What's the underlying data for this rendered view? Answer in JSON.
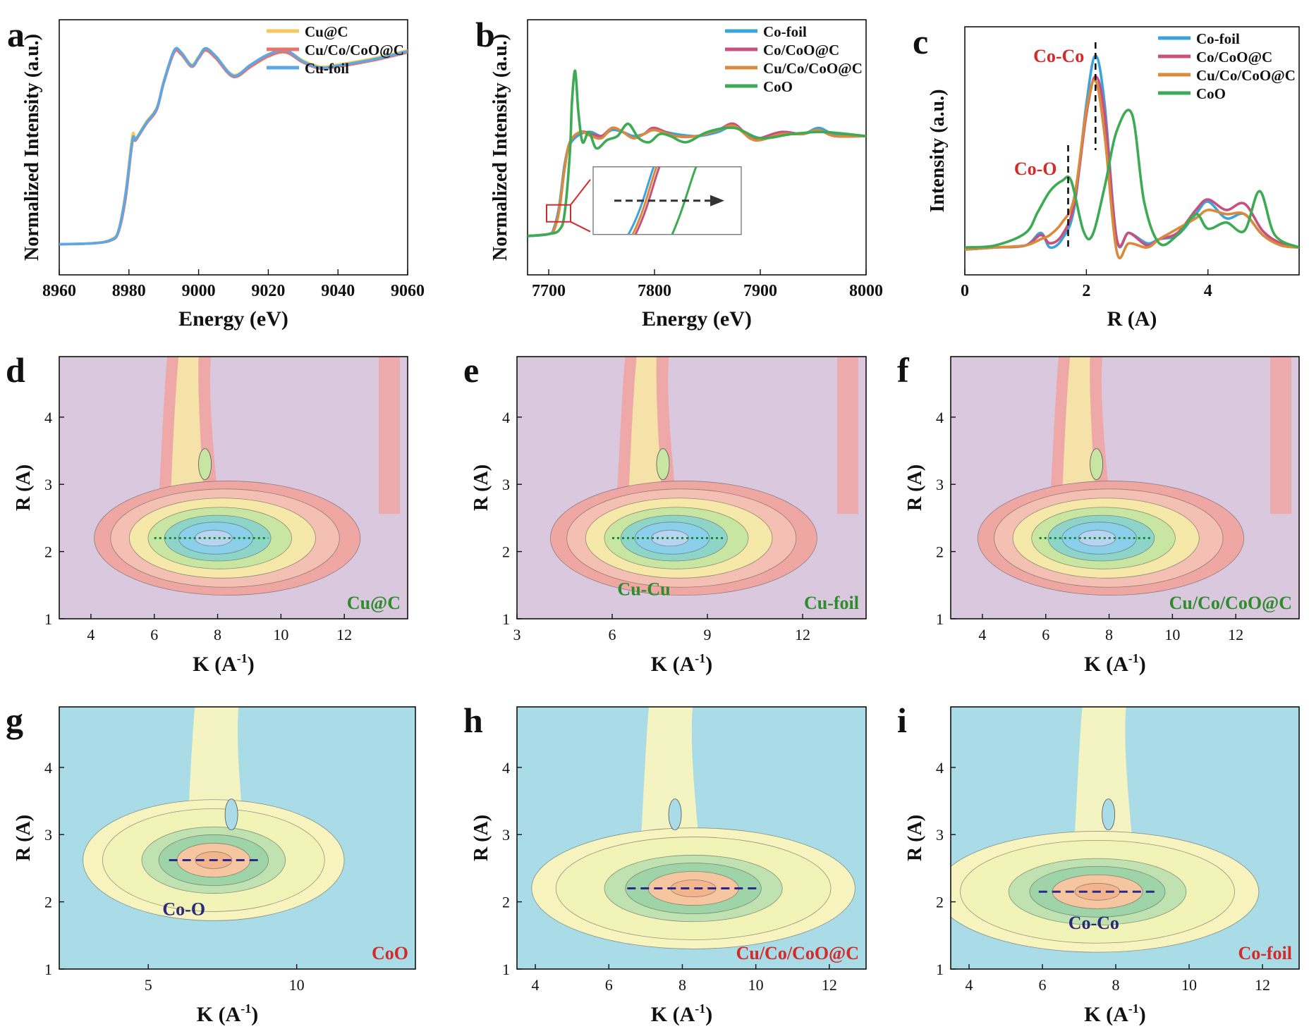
{
  "figure": {
    "description": "Nine-panel XAS figure: Cu K-edge XANES, Co K-edge XANES, Co FT-EXAFS, and six wavelet-transform contour maps"
  },
  "colors": {
    "cu_c": "#F5C85A",
    "cucocoo": "#E8736A",
    "cufoil": "#5AA8E8",
    "cofoil": "#3BA3DC",
    "cocoo": "#C94F7C",
    "cucocoo_b": "#D98A3A",
    "coo": "#3DAA54",
    "label_red": "#D42A2A",
    "label_green": "#2E8B2E",
    "label_navy": "#2A2A7A"
  },
  "chart_data": [
    {
      "id": "a",
      "type": "line",
      "panel_label": "a",
      "xlabel": "Energy (eV)",
      "ylabel": "Normalized Intensity (a.u.)",
      "xlim": [
        8960,
        9060
      ],
      "ylim": [
        0,
        1
      ],
      "xticks": [
        "8960",
        "8980",
        "9000",
        "9020",
        "9040",
        "9060"
      ],
      "legend_position": "top-right",
      "series": [
        {
          "name": "Cu@C",
          "color_key": "cu_c",
          "x": [
            8960,
            8970,
            8975,
            8977,
            8979,
            8981,
            8982,
            8985,
            8988,
            8990,
            8993,
            8995,
            8998,
            9000,
            9002,
            9005,
            9010,
            9015,
            9020,
            9025,
            9030,
            9035,
            9040,
            9050,
            9060
          ],
          "y": [
            0.05,
            0.055,
            0.075,
            0.12,
            0.3,
            0.58,
            0.57,
            0.65,
            0.72,
            0.85,
            1.0,
            0.99,
            0.93,
            0.97,
            1.01,
            0.97,
            0.88,
            0.93,
            0.98,
            1.0,
            0.95,
            0.92,
            0.93,
            0.96,
            1.0
          ]
        },
        {
          "name": "Cu/Co/CoO@C",
          "color_key": "cucocoo",
          "x": [
            8960,
            8970,
            8975,
            8977,
            8979,
            8981,
            8982,
            8985,
            8988,
            8990,
            8993,
            8995,
            8998,
            9000,
            9002,
            9005,
            9010,
            9015,
            9020,
            9025,
            9030,
            9035,
            9040,
            9050,
            9060
          ],
          "y": [
            0.05,
            0.055,
            0.07,
            0.11,
            0.27,
            0.55,
            0.56,
            0.64,
            0.71,
            0.84,
            0.99,
            0.98,
            0.92,
            0.96,
            1.0,
            0.96,
            0.87,
            0.92,
            0.97,
            0.99,
            0.94,
            0.91,
            0.92,
            0.95,
            0.99
          ]
        },
        {
          "name": "Cu-foil",
          "color_key": "cufoil",
          "x": [
            8960,
            8970,
            8975,
            8977,
            8979,
            8981,
            8982,
            8985,
            8988,
            8990,
            8993,
            8995,
            8998,
            9000,
            9002,
            9005,
            9010,
            9015,
            9020,
            9025,
            9030,
            9035,
            9040,
            9050,
            9060
          ],
          "y": [
            0.05,
            0.055,
            0.072,
            0.115,
            0.29,
            0.56,
            0.565,
            0.645,
            0.715,
            0.845,
            1.0,
            0.99,
            0.925,
            0.965,
            1.01,
            0.97,
            0.875,
            0.93,
            0.98,
            1.0,
            0.945,
            0.915,
            0.925,
            0.955,
            0.995
          ]
        }
      ]
    },
    {
      "id": "b",
      "type": "line",
      "panel_label": "b",
      "xlabel": "Energy (eV)",
      "ylabel": "Normalized Intensity (a.u.)",
      "xlim": [
        7680,
        8000
      ],
      "ylim": [
        0,
        1
      ],
      "xticks": [
        "7700",
        "7800",
        "7900",
        "8000"
      ],
      "legend_position": "top-right",
      "series": [
        {
          "name": "Co-foil",
          "color_key": "cofoil",
          "x": [
            7680,
            7700,
            7705,
            7710,
            7715,
            7720,
            7730,
            7740,
            7750,
            7760,
            7770,
            7780,
            7790,
            7800,
            7820,
            7840,
            7860,
            7875,
            7890,
            7900,
            7920,
            7940,
            7955,
            7970,
            8000
          ],
          "y": [
            0.09,
            0.1,
            0.13,
            0.24,
            0.44,
            0.54,
            0.59,
            0.6,
            0.58,
            0.61,
            0.6,
            0.58,
            0.59,
            0.61,
            0.59,
            0.58,
            0.6,
            0.63,
            0.58,
            0.57,
            0.6,
            0.59,
            0.62,
            0.59,
            0.58
          ]
        },
        {
          "name": "Co/CoO@C",
          "color_key": "cocoo",
          "x": [
            7680,
            7700,
            7705,
            7710,
            7715,
            7720,
            7730,
            7740,
            7750,
            7760,
            7770,
            7780,
            7790,
            7800,
            7820,
            7840,
            7860,
            7875,
            7890,
            7900,
            7920,
            7940,
            7955,
            7970,
            8000
          ],
          "y": [
            0.09,
            0.1,
            0.12,
            0.22,
            0.42,
            0.55,
            0.6,
            0.59,
            0.58,
            0.62,
            0.6,
            0.57,
            0.59,
            0.62,
            0.58,
            0.58,
            0.61,
            0.64,
            0.57,
            0.57,
            0.6,
            0.59,
            0.61,
            0.58,
            0.58
          ]
        },
        {
          "name": "Cu/Co/CoO@C",
          "color_key": "cucocoo_b",
          "x": [
            7680,
            7700,
            7705,
            7710,
            7715,
            7720,
            7730,
            7740,
            7750,
            7760,
            7770,
            7780,
            7790,
            7800,
            7820,
            7840,
            7860,
            7875,
            7890,
            7900,
            7920,
            7940,
            7955,
            7970,
            8000
          ],
          "y": [
            0.09,
            0.1,
            0.12,
            0.22,
            0.42,
            0.55,
            0.6,
            0.58,
            0.57,
            0.62,
            0.6,
            0.57,
            0.59,
            0.61,
            0.58,
            0.58,
            0.61,
            0.63,
            0.57,
            0.56,
            0.59,
            0.59,
            0.61,
            0.58,
            0.58
          ]
        },
        {
          "name": "CoO",
          "color_key": "coo",
          "x": [
            7680,
            7700,
            7710,
            7715,
            7720,
            7722,
            7725,
            7728,
            7732,
            7738,
            7745,
            7755,
            7765,
            7775,
            7785,
            7795,
            7805,
            7815,
            7830,
            7850,
            7875,
            7900,
            7930,
            7960,
            8000
          ],
          "y": [
            0.09,
            0.1,
            0.12,
            0.2,
            0.5,
            0.75,
            0.9,
            0.7,
            0.55,
            0.6,
            0.52,
            0.56,
            0.58,
            0.64,
            0.57,
            0.55,
            0.59,
            0.58,
            0.55,
            0.6,
            0.62,
            0.57,
            0.59,
            0.6,
            0.58
          ]
        }
      ],
      "inset": {
        "arrow": "right"
      }
    },
    {
      "id": "c",
      "type": "line",
      "panel_label": "c",
      "xlabel": "R (A)",
      "ylabel": "Intensity (a.u.)",
      "xlim": [
        0,
        5.5
      ],
      "ylim": [
        0,
        1
      ],
      "xticks": [
        "0",
        "2",
        "4"
      ],
      "legend_position": "top-right",
      "annotations": [
        {
          "text": "Co-Co",
          "x": 2.15,
          "color_key": "label_red"
        },
        {
          "text": "Co-O",
          "x": 1.7,
          "color_key": "label_red"
        }
      ],
      "series": [
        {
          "name": "Co-foil",
          "color_key": "cofoil",
          "x": [
            0,
            0.5,
            1.0,
            1.25,
            1.4,
            1.6,
            1.8,
            2.0,
            2.15,
            2.3,
            2.5,
            2.7,
            3.0,
            3.2,
            3.5,
            3.8,
            4.0,
            4.3,
            4.6,
            4.9,
            5.2,
            5.5
          ],
          "y": [
            0.05,
            0.06,
            0.07,
            0.13,
            0.06,
            0.1,
            0.25,
            0.75,
            0.98,
            0.75,
            0.1,
            0.13,
            0.08,
            0.1,
            0.12,
            0.22,
            0.28,
            0.2,
            0.22,
            0.12,
            0.07,
            0.06
          ]
        },
        {
          "name": "Co/CoO@C",
          "color_key": "cocoo",
          "x": [
            0,
            0.5,
            1.0,
            1.25,
            1.4,
            1.6,
            1.8,
            2.0,
            2.15,
            2.3,
            2.5,
            2.7,
            3.0,
            3.2,
            3.5,
            3.8,
            4.0,
            4.3,
            4.6,
            4.9,
            5.2,
            5.5
          ],
          "y": [
            0.05,
            0.06,
            0.07,
            0.12,
            0.08,
            0.12,
            0.27,
            0.7,
            0.88,
            0.7,
            0.1,
            0.13,
            0.07,
            0.1,
            0.13,
            0.24,
            0.29,
            0.24,
            0.27,
            0.14,
            0.08,
            0.06
          ]
        },
        {
          "name": "Cu/Co/CoO@C",
          "color_key": "cucocoo_b",
          "x": [
            0,
            0.5,
            1.0,
            1.25,
            1.4,
            1.6,
            1.8,
            2.0,
            2.15,
            2.3,
            2.5,
            2.7,
            3.0,
            3.2,
            3.5,
            3.8,
            4.0,
            4.3,
            4.6,
            4.9,
            5.2,
            5.5
          ],
          "y": [
            0.05,
            0.06,
            0.07,
            0.1,
            0.12,
            0.18,
            0.3,
            0.72,
            0.86,
            0.6,
            0.04,
            0.08,
            0.06,
            0.1,
            0.15,
            0.2,
            0.24,
            0.22,
            0.22,
            0.12,
            0.07,
            0.06
          ]
        },
        {
          "name": "CoO",
          "color_key": "coo",
          "x": [
            0,
            0.5,
            1.0,
            1.2,
            1.4,
            1.6,
            1.75,
            1.95,
            2.1,
            2.3,
            2.5,
            2.75,
            2.95,
            3.2,
            3.5,
            3.8,
            4.0,
            4.3,
            4.6,
            4.85,
            5.1,
            5.5
          ],
          "y": [
            0.06,
            0.07,
            0.13,
            0.23,
            0.33,
            0.38,
            0.38,
            0.14,
            0.12,
            0.35,
            0.62,
            0.7,
            0.28,
            0.08,
            0.12,
            0.22,
            0.15,
            0.18,
            0.14,
            0.33,
            0.12,
            0.06
          ]
        }
      ]
    },
    {
      "id": "d",
      "type": "heatmap",
      "panel_label": "d",
      "palette": "warm",
      "xlabel": "K (A",
      "xlabel_sup": "-1",
      "xlabel_tail": ")",
      "ylabel": "R (A)",
      "xlim": [
        3,
        14
      ],
      "ylim": [
        1,
        4.9
      ],
      "xticks": [
        "4",
        "6",
        "8",
        "10",
        "12"
      ],
      "yticks": [
        "1",
        "2",
        "3",
        "4"
      ],
      "line_x": [
        6,
        9.6
      ],
      "line_y": 2.2,
      "line_color": "#1A8A3A",
      "line_style": "dotted",
      "sample_label": "Cu@C",
      "sample_label_color_key": "label_green"
    },
    {
      "id": "e",
      "type": "heatmap",
      "panel_label": "e",
      "palette": "warm",
      "xlabel": "K (A",
      "xlabel_sup": "-1",
      "xlabel_tail": ")",
      "ylabel": "R (A)",
      "xlim": [
        3,
        14
      ],
      "ylim": [
        1,
        4.9
      ],
      "xticks": [
        "3",
        "6",
        "9",
        "12"
      ],
      "yticks": [
        "1",
        "2",
        "3",
        "4"
      ],
      "line_x": [
        6,
        9.5
      ],
      "line_y": 2.2,
      "line_color": "#1A8A3A",
      "line_style": "dotted",
      "bond_label": "Cu-Cu",
      "bond_label_color_key": "label_green",
      "sample_label": "Cu-foil",
      "sample_label_color_key": "label_green"
    },
    {
      "id": "f",
      "type": "heatmap",
      "panel_label": "f",
      "palette": "warm",
      "xlabel": "K (A",
      "xlabel_sup": "-1",
      "xlabel_tail": ")",
      "ylabel": "R (A)",
      "xlim": [
        3,
        14
      ],
      "ylim": [
        1,
        4.9
      ],
      "xticks": [
        "4",
        "6",
        "8",
        "10",
        "12"
      ],
      "yticks": [
        "1",
        "2",
        "3",
        "4"
      ],
      "line_x": [
        5.8,
        9.3
      ],
      "line_y": 2.2,
      "line_color": "#1A8A3A",
      "line_style": "dotted",
      "sample_label": "Cu/Co/CoO@C",
      "sample_label_color_key": "label_green"
    },
    {
      "id": "g",
      "type": "heatmap",
      "panel_label": "g",
      "palette": "cool",
      "xlabel": "K (A",
      "xlabel_sup": "-1",
      "xlabel_tail": ")",
      "ylabel": "R (A)",
      "xlim": [
        2,
        14
      ],
      "ylim": [
        1,
        4.9
      ],
      "xticks": [
        "5",
        "10"
      ],
      "yticks": [
        "1",
        "2",
        "3",
        "4"
      ],
      "line_x": [
        5.7,
        8.7
      ],
      "line_y": 2.62,
      "line_color": "#2A2A8A",
      "line_style": "dashed",
      "bond_label": "Co-O",
      "bond_label_color_key": "label_navy",
      "sample_label": "CoO",
      "sample_label_color_key": "label_red"
    },
    {
      "id": "h",
      "type": "heatmap",
      "panel_label": "h",
      "palette": "cool",
      "xlabel": "K (A",
      "xlabel_sup": "-1",
      "xlabel_tail": ")",
      "ylabel": "R (A)",
      "xlim": [
        3.5,
        13
      ],
      "ylim": [
        1,
        4.9
      ],
      "xticks": [
        "4",
        "6",
        "8",
        "10",
        "12"
      ],
      "yticks": [
        "1",
        "2",
        "3",
        "4"
      ],
      "line_x": [
        6.5,
        10.1
      ],
      "line_y": 2.2,
      "line_color": "#2A2A8A",
      "line_style": "dashed",
      "sample_label": "Cu/Co/CoO@C",
      "sample_label_color_key": "label_red"
    },
    {
      "id": "i",
      "type": "heatmap",
      "panel_label": "i",
      "palette": "cool",
      "xlabel": "K (A",
      "xlabel_sup": "-1",
      "xlabel_tail": ")",
      "ylabel": "R (A)",
      "xlim": [
        3.5,
        13
      ],
      "ylim": [
        1,
        4.9
      ],
      "xticks": [
        "4",
        "6",
        "8",
        "10",
        "12"
      ],
      "yticks": [
        "1",
        "2",
        "3",
        "4"
      ],
      "line_x": [
        5.9,
        9.1
      ],
      "line_y": 2.15,
      "line_color": "#2A2A8A",
      "line_style": "dashed",
      "bond_label": "Co-Co",
      "bond_label_color_key": "label_navy",
      "sample_label": "Co-foil",
      "sample_label_color_key": "label_red"
    }
  ]
}
